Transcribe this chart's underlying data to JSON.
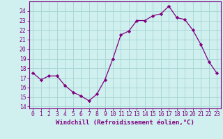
{
  "x": [
    0,
    1,
    2,
    3,
    4,
    5,
    6,
    7,
    8,
    9,
    10,
    11,
    12,
    13,
    14,
    15,
    16,
    17,
    18,
    19,
    20,
    21,
    22,
    23
  ],
  "y": [
    17.5,
    16.8,
    17.2,
    17.2,
    16.2,
    15.5,
    15.1,
    14.6,
    15.3,
    16.8,
    19.0,
    21.5,
    21.9,
    23.0,
    23.0,
    23.5,
    23.7,
    24.5,
    23.3,
    23.1,
    22.0,
    20.5,
    18.7,
    17.5
  ],
  "line_color": "#800080",
  "marker": "D",
  "marker_size": 2.2,
  "bg_color": "#cff0ef",
  "grid_color": "#aad8d6",
  "ylabel_ticks": [
    14,
    15,
    16,
    17,
    18,
    19,
    20,
    21,
    22,
    23,
    24
  ],
  "ylim": [
    13.8,
    25.0
  ],
  "xlim": [
    -0.5,
    23.5
  ],
  "xlabel": "Windchill (Refroidissement éolien,°C)",
  "tick_color": "#800080",
  "label_fontsize": 6.5,
  "tick_fontsize": 5.8
}
